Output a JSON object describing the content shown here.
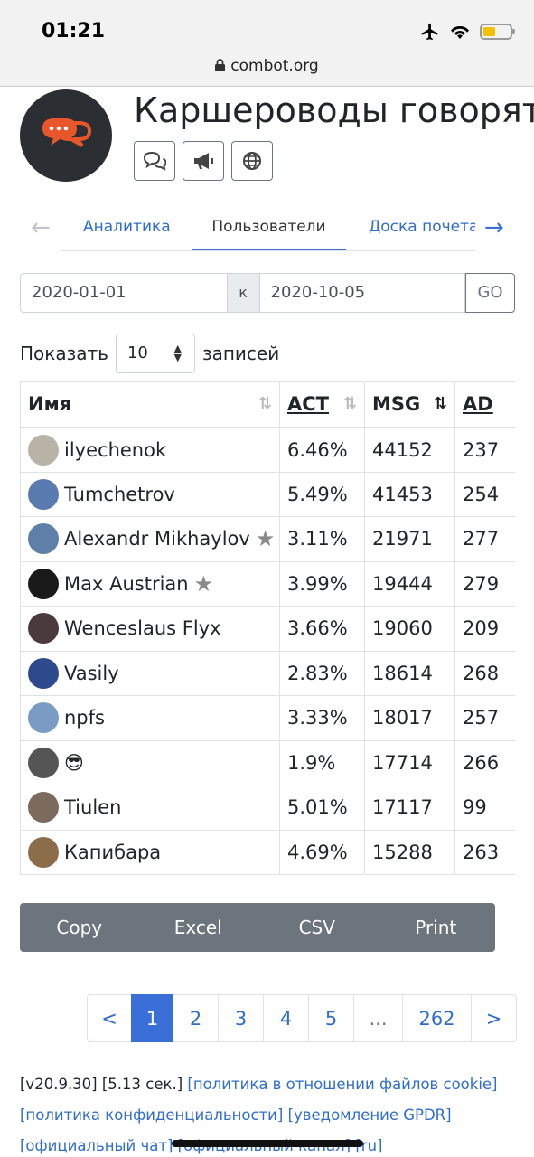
{
  "status": {
    "time": "01:21"
  },
  "browser": {
    "url": "combot.org"
  },
  "header": {
    "title": "Каршероводы говорят"
  },
  "tabs": {
    "analytics": "Аналитика",
    "users": "Пользователи",
    "board": "Доска почета"
  },
  "dates": {
    "from": "2020-01-01",
    "sep": "к",
    "to": "2020-10-05",
    "go": "GO"
  },
  "show": {
    "prefix": "Показать",
    "value": "10",
    "suffix": "записей"
  },
  "table": {
    "headers": {
      "name": "Имя",
      "act": "ACT",
      "msg": "MSG",
      "ad": "AD"
    },
    "rows": [
      {
        "name": "ilyechenok",
        "act": "6.46%",
        "msg": "44152",
        "ad": "237",
        "avatar": "#b9b2a6"
      },
      {
        "name": "Tumchetrov",
        "act": "5.49%",
        "msg": "41453",
        "ad": "254",
        "avatar": "#5a7bb0"
      },
      {
        "name": "Alexandr Mikhaylov",
        "act": "3.11%",
        "msg": "21971",
        "ad": "277",
        "avatar": "#5d7fa8",
        "star": true
      },
      {
        "name": "Max Austrian",
        "act": "3.99%",
        "msg": "19444",
        "ad": "279",
        "avatar": "#1a1a1a",
        "star": true
      },
      {
        "name": "Wenceslaus Flyx",
        "act": "3.66%",
        "msg": "19060",
        "ad": "209",
        "avatar": "#4a3a3e"
      },
      {
        "name": "Vasily",
        "act": "2.83%",
        "msg": "18614",
        "ad": "268",
        "avatar": "#2d4a8c"
      },
      {
        "name": "npfs",
        "act": "3.33%",
        "msg": "18017",
        "ad": "257",
        "avatar": "#7a9cc4"
      },
      {
        "name": "😎",
        "act": "1.9%",
        "msg": "17714",
        "ad": "266",
        "avatar": "#555"
      },
      {
        "name": "Tiulen",
        "act": "5.01%",
        "msg": "17117",
        "ad": "99",
        "avatar": "#7c6a5c"
      },
      {
        "name": "Капибара",
        "act": "4.69%",
        "msg": "15288",
        "ad": "263",
        "avatar": "#8b6d4a"
      }
    ]
  },
  "export": {
    "copy": "Copy",
    "excel": "Excel",
    "csv": "CSV",
    "print": "Print"
  },
  "pager": {
    "prev": "<",
    "p1": "1",
    "p2": "2",
    "p3": "3",
    "p4": "4",
    "p5": "5",
    "dots": "...",
    "last": "262",
    "next": ">"
  },
  "footer": {
    "version": "[v20.9.30]",
    "time": "[5.13 сек.]",
    "cookie": "[политика в отношении файлов cookie]",
    "privacy": "[политика конфиденциальности]",
    "gdpr": "[уведомление GPDR]",
    "chat": "[официальный чат]",
    "channel": "[официальный канал]",
    "lang": "[ru]"
  }
}
